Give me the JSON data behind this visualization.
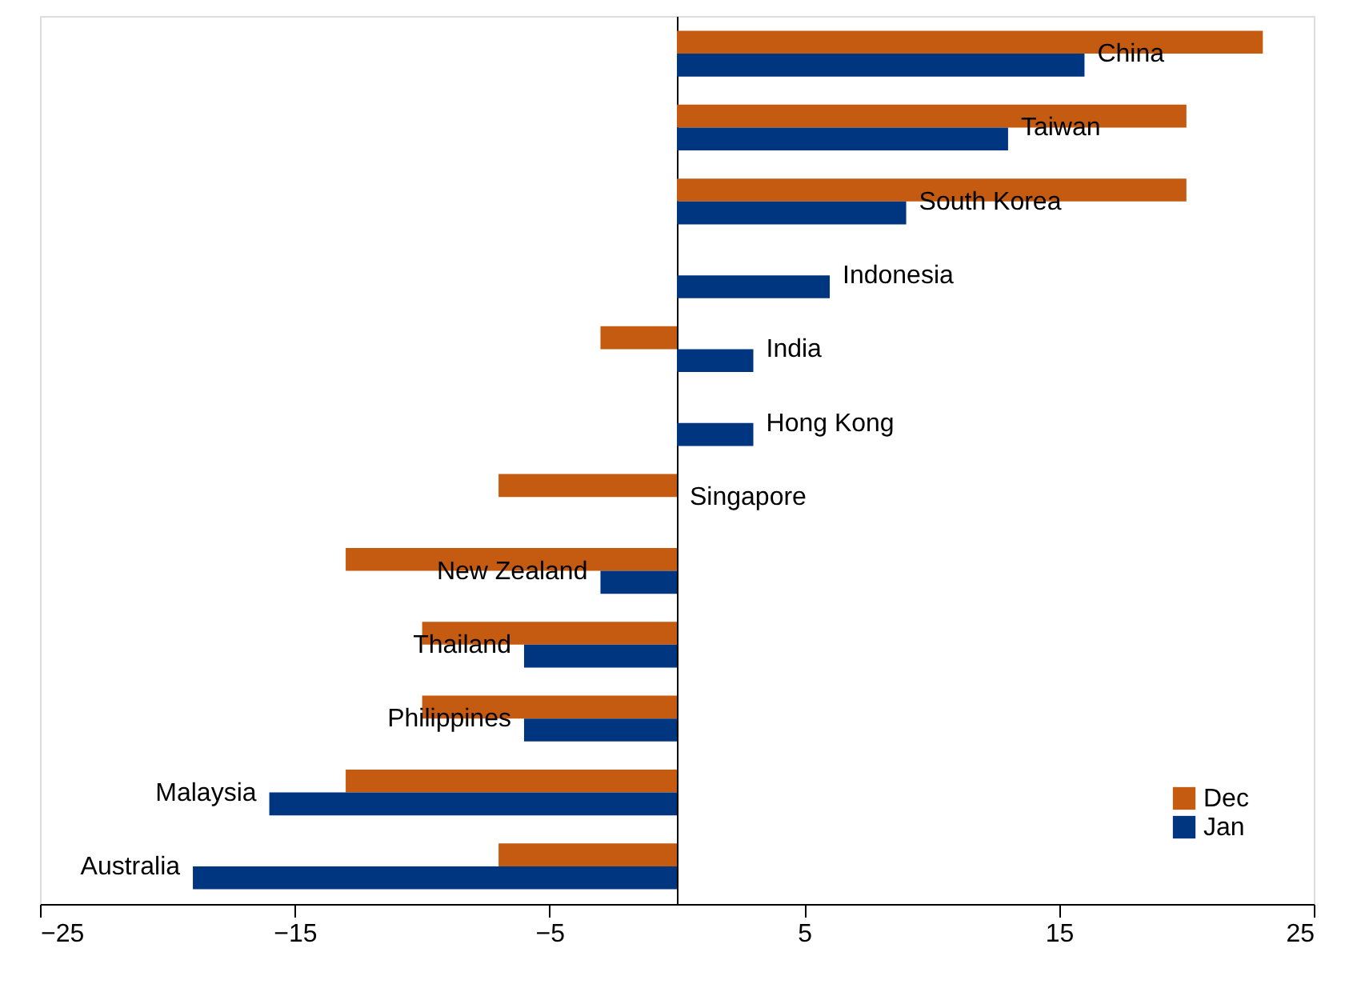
{
  "chart_data": {
    "type": "bar",
    "orientation": "horizontal",
    "categories": [
      "China",
      "Taiwan",
      "South Korea",
      "Indonesia",
      "India",
      "Hong Kong",
      "Singapore",
      "New Zealand",
      "Thailand",
      "Philippines",
      "Malaysia",
      "Australia"
    ],
    "series": [
      {
        "name": "Dec",
        "color": "#c55a11",
        "values": [
          23,
          20,
          20,
          0,
          -3,
          0,
          -7,
          -13,
          -10,
          -10,
          -13,
          -7
        ]
      },
      {
        "name": "Jan",
        "color": "#003580",
        "values": [
          16,
          13,
          9,
          6,
          3,
          3,
          0,
          -3,
          -6,
          -6,
          -16,
          -19
        ]
      }
    ],
    "xlim": [
      -25,
      25
    ],
    "xticks": [
      -25,
      -15,
      -5,
      5,
      15,
      25
    ],
    "grid": false,
    "legend": "bottom right"
  }
}
